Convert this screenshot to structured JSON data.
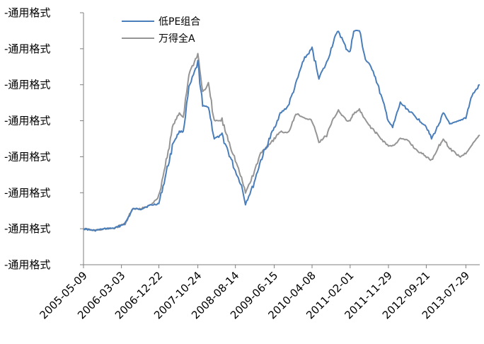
{
  "chart_data": {
    "type": "line",
    "title": "",
    "xlabel": "",
    "ylabel": "",
    "x_ticks": [
      "2005-05-09",
      "2006-03-03",
      "2006-12-22",
      "2007-10-24",
      "2008-08-14",
      "2009-06-15",
      "2010-04-08",
      "2011-02-01",
      "2011-11-29",
      "2012-09-21",
      "2013-07-29"
    ],
    "x_range": [
      "2005-05-09",
      "2013-11-15"
    ],
    "y_tick_labels": [
      "-通用格式",
      "-通用格式",
      "-通用格式",
      "-通用格式",
      "-通用格式",
      "-通用格式",
      "-通用格式",
      "-通用格式"
    ],
    "ylim": [
      0,
      7
    ],
    "grid": false,
    "legend_position": "top-left",
    "series": [
      {
        "name": "低PE组合",
        "color": "#4a7ebb",
        "points": [
          [
            "2005-05-09",
            1.0
          ],
          [
            "2005-08-01",
            0.95
          ],
          [
            "2005-11-01",
            1.0
          ],
          [
            "2006-01-15",
            1.02
          ],
          [
            "2006-04-01",
            1.15
          ],
          [
            "2006-06-01",
            1.55
          ],
          [
            "2006-08-01",
            1.55
          ],
          [
            "2006-10-15",
            1.65
          ],
          [
            "2006-12-22",
            1.7
          ],
          [
            "2007-02-01",
            2.3
          ],
          [
            "2007-04-15",
            3.4
          ],
          [
            "2007-06-01",
            3.7
          ],
          [
            "2007-07-01",
            3.7
          ],
          [
            "2007-08-15",
            4.9
          ],
          [
            "2007-10-24",
            5.6
          ],
          [
            "2007-12-01",
            4.4
          ],
          [
            "2008-01-15",
            4.4
          ],
          [
            "2008-03-01",
            3.5
          ],
          [
            "2008-05-01",
            3.6
          ],
          [
            "2008-08-14",
            2.6
          ],
          [
            "2008-10-01",
            2.2
          ],
          [
            "2008-11-01",
            1.7
          ],
          [
            "2009-01-01",
            2.2
          ],
          [
            "2009-03-01",
            2.9
          ],
          [
            "2009-06-15",
            3.8
          ],
          [
            "2009-08-01",
            4.2
          ],
          [
            "2009-10-01",
            4.4
          ],
          [
            "2009-12-01",
            5.0
          ],
          [
            "2010-02-01",
            5.7
          ],
          [
            "2010-04-08",
            6.0
          ],
          [
            "2010-06-01",
            5.2
          ],
          [
            "2010-08-01",
            5.6
          ],
          [
            "2010-10-01",
            6.3
          ],
          [
            "2010-11-01",
            6.5
          ],
          [
            "2011-01-01",
            6.0
          ],
          [
            "2011-02-01",
            5.9
          ],
          [
            "2011-03-01",
            6.5
          ],
          [
            "2011-04-15",
            6.5
          ],
          [
            "2011-06-01",
            5.7
          ],
          [
            "2011-08-01",
            5.4
          ],
          [
            "2011-10-01",
            4.7
          ],
          [
            "2011-11-29",
            4.0
          ],
          [
            "2012-01-01",
            3.8
          ],
          [
            "2012-03-01",
            4.5
          ],
          [
            "2012-05-01",
            4.3
          ],
          [
            "2012-07-01",
            4.1
          ],
          [
            "2012-09-21",
            3.85
          ],
          [
            "2012-11-01",
            3.5
          ],
          [
            "2012-12-15",
            3.8
          ],
          [
            "2013-02-01",
            4.2
          ],
          [
            "2013-04-01",
            3.9
          ],
          [
            "2013-06-15",
            4.0
          ],
          [
            "2013-07-29",
            4.1
          ],
          [
            "2013-09-15",
            4.7
          ],
          [
            "2013-11-15",
            5.0
          ]
        ]
      },
      {
        "name": "万得全A",
        "color": "#959595",
        "points": [
          [
            "2005-05-09",
            1.0
          ],
          [
            "2005-08-01",
            0.95
          ],
          [
            "2005-11-01",
            1.0
          ],
          [
            "2006-01-15",
            1.02
          ],
          [
            "2006-04-01",
            1.15
          ],
          [
            "2006-06-01",
            1.55
          ],
          [
            "2006-08-01",
            1.55
          ],
          [
            "2006-10-15",
            1.65
          ],
          [
            "2006-12-22",
            1.9
          ],
          [
            "2007-02-01",
            2.6
          ],
          [
            "2007-04-15",
            3.9
          ],
          [
            "2007-06-01",
            4.2
          ],
          [
            "2007-07-01",
            4.1
          ],
          [
            "2007-08-15",
            5.3
          ],
          [
            "2007-10-24",
            5.85
          ],
          [
            "2007-12-01",
            4.8
          ],
          [
            "2008-01-15",
            5.0
          ],
          [
            "2008-03-01",
            4.0
          ],
          [
            "2008-05-01",
            4.0
          ],
          [
            "2008-08-14",
            2.9
          ],
          [
            "2008-10-01",
            2.4
          ],
          [
            "2008-11-01",
            2.0
          ],
          [
            "2009-01-01",
            2.5
          ],
          [
            "2009-03-01",
            3.1
          ],
          [
            "2009-06-15",
            3.5
          ],
          [
            "2009-08-01",
            3.7
          ],
          [
            "2009-10-01",
            3.65
          ],
          [
            "2009-12-01",
            4.2
          ],
          [
            "2010-02-01",
            4.1
          ],
          [
            "2010-04-08",
            4.0
          ],
          [
            "2010-06-01",
            3.4
          ],
          [
            "2010-08-01",
            3.6
          ],
          [
            "2010-10-01",
            4.1
          ],
          [
            "2010-11-01",
            4.3
          ],
          [
            "2011-01-01",
            4.0
          ],
          [
            "2011-02-01",
            4.0
          ],
          [
            "2011-03-01",
            4.2
          ],
          [
            "2011-04-15",
            4.3
          ],
          [
            "2011-06-01",
            4.0
          ],
          [
            "2011-08-01",
            3.75
          ],
          [
            "2011-10-01",
            3.5
          ],
          [
            "2011-11-29",
            3.3
          ],
          [
            "2012-01-01",
            3.3
          ],
          [
            "2012-03-01",
            3.5
          ],
          [
            "2012-05-01",
            3.45
          ],
          [
            "2012-07-01",
            3.2
          ],
          [
            "2012-09-21",
            3.0
          ],
          [
            "2012-11-01",
            2.9
          ],
          [
            "2012-12-15",
            3.2
          ],
          [
            "2013-02-01",
            3.5
          ],
          [
            "2013-04-01",
            3.2
          ],
          [
            "2013-06-15",
            3.0
          ],
          [
            "2013-07-29",
            3.1
          ],
          [
            "2013-09-15",
            3.35
          ],
          [
            "2013-11-15",
            3.6
          ]
        ]
      }
    ]
  }
}
